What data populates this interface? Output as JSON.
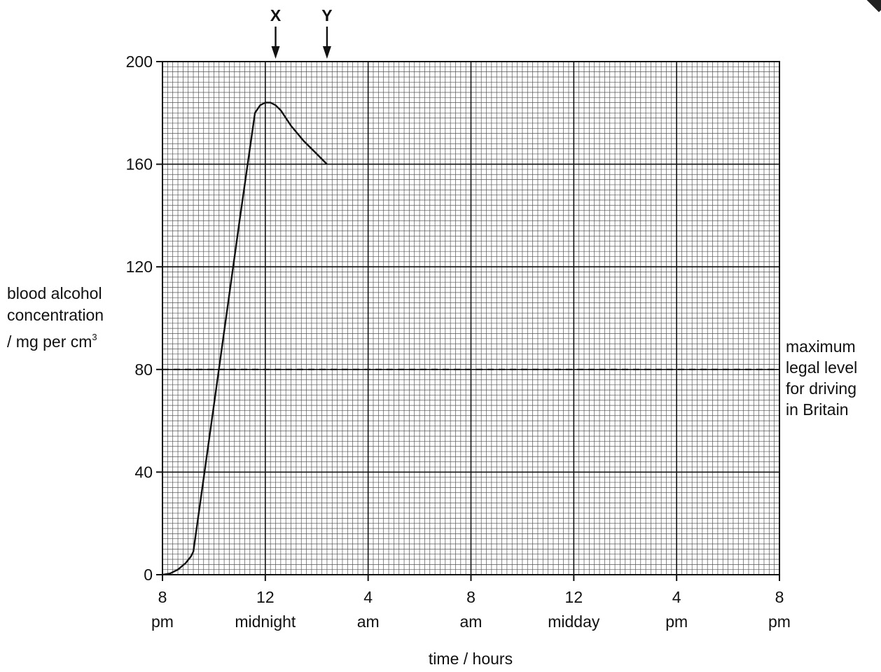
{
  "chart_data": {
    "type": "line",
    "title": "",
    "xlabel": "time / hours",
    "ylabel": {
      "line1": "blood alcohol",
      "line2": "concentration",
      "line3": "/ mg per cm",
      "sup": "3"
    },
    "x_unit": "hours after 8 pm",
    "xlim": [
      0,
      24
    ],
    "ylim": [
      0,
      200
    ],
    "x_ticks": [
      {
        "x": 0,
        "top": "8",
        "bottom": "pm"
      },
      {
        "x": 4,
        "top": "12",
        "bottom": "midnight"
      },
      {
        "x": 8,
        "top": "4",
        "bottom": "am"
      },
      {
        "x": 12,
        "top": "8",
        "bottom": "am"
      },
      {
        "x": 16,
        "top": "12",
        "bottom": "midday"
      },
      {
        "x": 20,
        "top": "4",
        "bottom": "pm"
      },
      {
        "x": 24,
        "top": "8",
        "bottom": "pm"
      }
    ],
    "y_ticks": [
      0,
      40,
      80,
      120,
      160,
      200
    ],
    "grid": true,
    "series": [
      {
        "x": [
          0,
          0.3,
          0.6,
          0.9,
          1.1,
          1.2,
          2.0,
          3.0,
          3.6,
          3.8,
          4.0,
          4.2,
          4.4,
          4.6,
          5.0,
          5.5,
          6.0,
          6.4
        ],
        "y": [
          0,
          0.5,
          2,
          4.5,
          7,
          9,
          66,
          138,
          180,
          183,
          184,
          184,
          183,
          181,
          175,
          169,
          164,
          160
        ]
      }
    ],
    "reference_line": {
      "y": 80,
      "style": "dashed",
      "label": [
        "maximum",
        "legal level",
        "for driving",
        "in Britain"
      ]
    },
    "annotations": [
      {
        "label": "X",
        "x": 4.4
      },
      {
        "label": "Y",
        "x": 6.4
      }
    ]
  }
}
